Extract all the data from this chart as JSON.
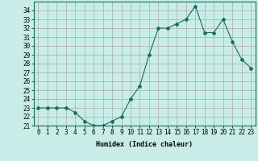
{
  "xlabel": "Humidex (Indice chaleur)",
  "x": [
    0,
    1,
    2,
    3,
    4,
    5,
    6,
    7,
    8,
    9,
    10,
    11,
    12,
    13,
    14,
    15,
    16,
    17,
    18,
    19,
    20,
    21,
    22,
    23
  ],
  "y": [
    23,
    23,
    23,
    23,
    22.5,
    21.5,
    21,
    21,
    21.5,
    22,
    24,
    25.5,
    29,
    32,
    32,
    32.5,
    33,
    34.5,
    31.5,
    31.5,
    33,
    30.5,
    28.5,
    27.5
  ],
  "ylim": [
    21,
    35
  ],
  "xlim": [
    -0.5,
    23.5
  ],
  "yticks": [
    21,
    22,
    23,
    24,
    25,
    26,
    27,
    28,
    29,
    30,
    31,
    32,
    33,
    34
  ],
  "line_color": "#1a6b5a",
  "marker": "D",
  "marker_size": 2,
  "bg_color": "#c8ede8",
  "grid_color": "#aaaaaa",
  "label_fontsize": 6,
  "tick_fontsize": 5.5
}
